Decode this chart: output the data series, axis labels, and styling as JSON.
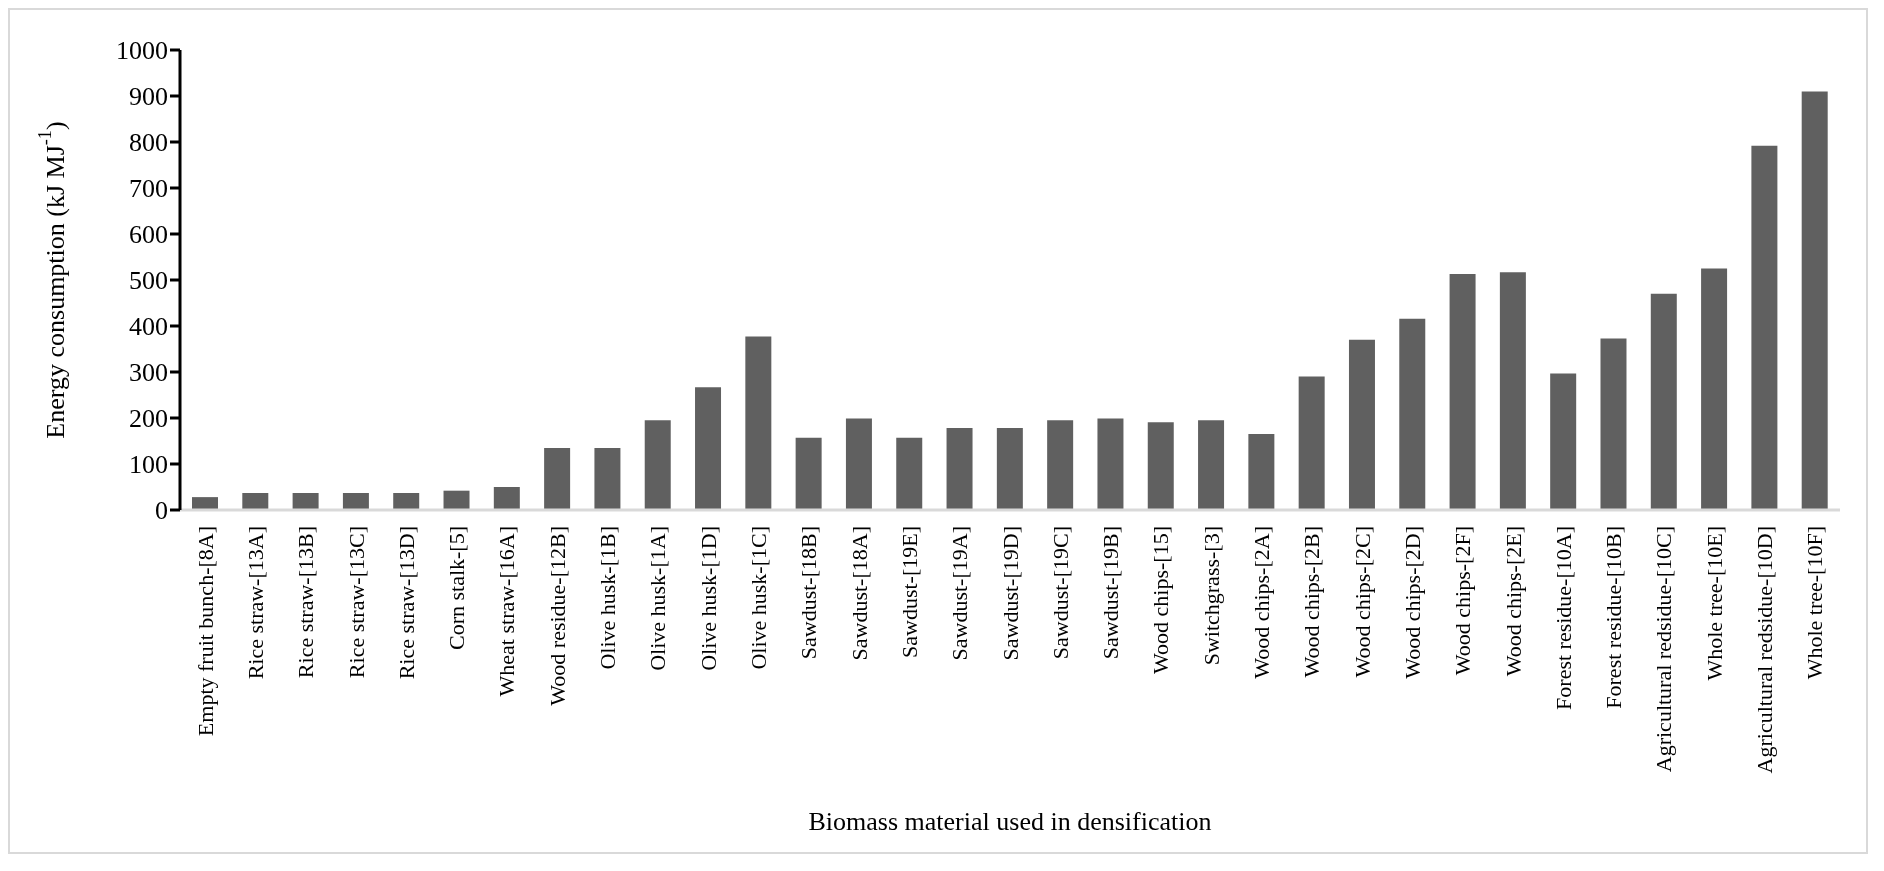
{
  "chart_data": {
    "type": "bar",
    "xlabel": "Biomass material used in densification",
    "ylabel": "Energy consumption  (kJ MJ$^{-1}$)",
    "categories": [
      "Empty fruit bunch-[8A]",
      "Rice straw-[13A]",
      "Rice straw-[13B]",
      "Rice straw-[13C]",
      "Rice straw-[13D]",
      "Corn stalk-[5]",
      "Wheat straw-[16A]",
      "Wood residue-[12B]",
      "Olive husk-[1B]",
      "Olive husk-[1A]",
      "Olive husk-[1D]",
      "Olive husk-[1C]",
      "Sawdust-[18B]",
      "Sawdust-[18A]",
      "Sawdust-[19E]",
      "Sawdust-[19A]",
      "Sawdust-[19D]",
      "Sawdust-[19C]",
      "Sawdust-[19B]",
      "Wood chips-[15]",
      "Switchgrass-[3]",
      "Wood chips-[2A]",
      "Wood chips-[2B]",
      "Wood chips-[2C]",
      "Wood chips-[2D]",
      "Wood chips-[2F]",
      "Wood chips-[2E]",
      "Forest residue-[10A]",
      "Forest residue-[10B]",
      "Agricultural redsidue-[10C]",
      "Whole tree-[10E]",
      "Agricultural redsidue-[10D]",
      "Whole tree-[10F]"
    ],
    "values": [
      28,
      37,
      37,
      37,
      37,
      42,
      50,
      135,
      135,
      195,
      267,
      377,
      157,
      199,
      157,
      178,
      178,
      195,
      199,
      191,
      195,
      165,
      290,
      370,
      416,
      513,
      517,
      297,
      373,
      470,
      525,
      792,
      910
    ],
    "color": "#606060",
    "ylim": [
      0,
      1000
    ],
    "yticks": [
      0,
      100,
      200,
      300,
      400,
      500,
      600,
      700,
      800,
      900,
      1000
    ],
    "grid": false
  }
}
